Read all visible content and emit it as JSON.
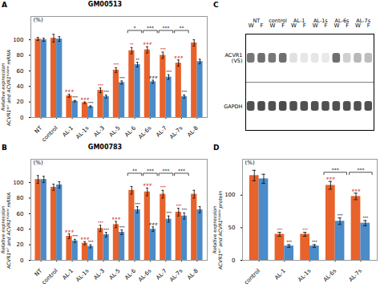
{
  "chart_data": [
    {
      "type": "bar",
      "panel_label": "A",
      "title": "GM00513",
      "ylabel": "Relative expression\nACVR1ᵂᵀ and ACVR1ᴿ²⁰⁶ᴴ mRNA",
      "categories": [
        "NT",
        "control",
        "AL-1",
        "AL-1s",
        "AL-3",
        "AL-5",
        "AL-6",
        "AL-6s",
        "AL-7",
        "AL-7s",
        "AL-8"
      ],
      "series": [
        {
          "color": "#E8622C",
          "values": [
            101,
            102,
            28,
            19,
            35,
            61,
            86,
            87,
            80,
            70,
            96
          ],
          "errors": [
            2,
            5,
            2,
            1,
            3,
            3,
            4,
            4,
            4,
            4,
            4
          ]
        },
        {
          "color": "#4B8BC8",
          "values": [
            100,
            101,
            21,
            14,
            27,
            45,
            68,
            46,
            52,
            27,
            72
          ],
          "errors": [
            2,
            3,
            1,
            1,
            2,
            2,
            3,
            2,
            3,
            2,
            3
          ]
        }
      ],
      "ylim": [
        0,
        130
      ],
      "yticks": [
        0,
        20,
        40,
        60,
        80,
        100
      ],
      "annotations": [
        {
          "text": "(%)"
        },
        {
          "text": "*",
          "category": "AL-6",
          "y": 112,
          "bracket": true
        },
        {
          "text": "***",
          "category": "AL-6s",
          "y": 112,
          "bracket": true
        },
        {
          "text": "***",
          "category": "AL-7",
          "y": 112,
          "bracket": true
        },
        {
          "text": "**",
          "category": "AL-7s",
          "y": 112,
          "bracket": true
        },
        {
          "text": "###",
          "category": "AL-1",
          "series": 0,
          "color": "#CC0000"
        },
        {
          "text": "###",
          "category": "AL-1s",
          "series": 0,
          "color": "#CC0000"
        },
        {
          "text": "***",
          "category": "AL-3",
          "series": 0,
          "color": "#CC0000"
        },
        {
          "text": "***",
          "category": "AL-5",
          "series": 0,
          "color": "#CC0000"
        },
        {
          "text": "**",
          "category": "AL-6",
          "series": 0,
          "color": "#CC0000"
        },
        {
          "text": "###",
          "category": "AL-6s",
          "series": 0,
          "color": "#CC0000"
        },
        {
          "text": "***",
          "category": "AL-7",
          "series": 0,
          "color": "#CC0000"
        },
        {
          "text": "###",
          "category": "AL-7s",
          "series": 0,
          "color": "#CC0000"
        },
        {
          "text": "***",
          "category": "AL-1",
          "series": 1,
          "color": "black"
        },
        {
          "text": "***",
          "category": "AL-1s",
          "series": 1,
          "color": "black"
        },
        {
          "text": "***",
          "category": "AL-3",
          "series": 1,
          "color": "black"
        },
        {
          "text": "***",
          "category": "AL-5",
          "series": 1,
          "color": "black"
        },
        {
          "text": "**",
          "category": "AL-6",
          "series": 1,
          "color": "black"
        },
        {
          "text": "###",
          "category": "AL-6s",
          "series": 1,
          "color": "black"
        },
        {
          "text": "***",
          "category": "AL-7",
          "series": 1,
          "color": "black"
        },
        {
          "text": "***",
          "category": "AL-7s",
          "series": 1,
          "color": "black"
        }
      ]
    },
    {
      "type": "bar",
      "panel_label": "B",
      "title": "GM00783",
      "ylabel": "Relative expression\nACVR1ᵂᵀ and ACVR1ᴿ²⁰⁶ᴴ mRNA",
      "categories": [
        "NT",
        "control",
        "AL-1",
        "AL-1s",
        "AL-3",
        "AL-5",
        "AL-6",
        "AL-6s",
        "AL-7",
        "AL-7s",
        "AL-8"
      ],
      "series": [
        {
          "color": "#E8622C",
          "values": [
            104,
            94,
            31,
            22,
            41,
            46,
            90,
            88,
            85,
            62,
            85
          ],
          "errors": [
            5,
            4,
            3,
            2,
            4,
            4,
            5,
            5,
            5,
            5,
            5
          ]
        },
        {
          "color": "#4B8BC8",
          "values": [
            104,
            97,
            25,
            18,
            33,
            36,
            65,
            40,
            53,
            57,
            65
          ],
          "errors": [
            4,
            4,
            2,
            2,
            3,
            3,
            4,
            3,
            4,
            4,
            4
          ]
        }
      ],
      "ylim": [
        0,
        130
      ],
      "yticks": [
        0,
        20,
        40,
        60,
        80,
        100
      ],
      "annotations": [
        {
          "text": "(%)"
        },
        {
          "text": "**",
          "category": "AL-6",
          "y": 112,
          "bracket": true
        },
        {
          "text": "***",
          "category": "AL-6s",
          "y": 112,
          "bracket": true
        },
        {
          "text": "***",
          "category": "AL-7",
          "y": 112,
          "bracket": true
        },
        {
          "text": "***",
          "category": "AL-7s",
          "y": 112,
          "bracket": true
        },
        {
          "text": "###",
          "category": "AL-1",
          "series": 0,
          "color": "#CC0000"
        },
        {
          "text": "###",
          "category": "AL-1s",
          "series": 0,
          "color": "#CC0000"
        },
        {
          "text": "***",
          "category": "AL-3",
          "series": 0,
          "color": "#CC0000"
        },
        {
          "text": "###",
          "category": "AL-5",
          "series": 0,
          "color": "#CC0000"
        },
        {
          "text": "###",
          "category": "AL-6s",
          "series": 0,
          "color": "#CC0000"
        },
        {
          "text": "***",
          "category": "AL-7",
          "series": 0,
          "color": "#CC0000"
        },
        {
          "text": "***",
          "category": "AL-7s",
          "series": 0,
          "color": "#CC0000"
        },
        {
          "text": "***",
          "category": "AL-1",
          "series": 1,
          "color": "black"
        },
        {
          "text": "***",
          "category": "AL-1s",
          "series": 1,
          "color": "black"
        },
        {
          "text": "***",
          "category": "AL-3",
          "series": 1,
          "color": "black"
        },
        {
          "text": "***",
          "category": "AL-5",
          "series": 1,
          "color": "black"
        },
        {
          "text": "***",
          "category": "AL-6",
          "series": 1,
          "color": "black"
        },
        {
          "text": "###",
          "category": "AL-6s",
          "series": 1,
          "color": "black"
        },
        {
          "text": "***",
          "category": "AL-7",
          "series": 1,
          "color": "black"
        },
        {
          "text": "***",
          "category": "AL-7s",
          "series": 1,
          "color": "black"
        }
      ]
    },
    {
      "type": "heatmap",
      "panel_label": "C",
      "categories": [
        "W",
        "F",
        "W",
        "F",
        "W",
        "F",
        "W",
        "F",
        "W",
        "F",
        "W",
        "F"
      ],
      "groups": [
        "NT",
        "control",
        "AL-1",
        "AL-1s",
        "AL-6s",
        "AL-7s"
      ],
      "series": [
        {
          "name": "ACVR1\n(V5)",
          "color": "#555555",
          "values": [
            0.8,
            0.85,
            0.8,
            0.85,
            0.18,
            0.14,
            0.15,
            0.13,
            0.85,
            0.28,
            0.42,
            0.38
          ]
        },
        {
          "name": "GAPDH",
          "color": "#333333",
          "values": [
            0.85,
            0.88,
            0.85,
            0.88,
            0.85,
            0.85,
            0.85,
            0.85,
            0.85,
            0.85,
            0.85,
            0.85
          ]
        }
      ]
    },
    {
      "type": "bar",
      "panel_label": "D",
      "ylabel": "Relative expression\nACVR1ᵂᵀ and ACVR1ᴿ²⁰⁶ᴴ protein",
      "categories": [
        "control",
        "AL-1",
        "AL-1s",
        "AL-6s",
        "AL-7s"
      ],
      "series": [
        {
          "color": "#E8622C",
          "values": [
            130,
            40,
            40,
            115,
            98
          ],
          "errors": [
            8,
            3,
            3,
            6,
            5
          ]
        },
        {
          "color": "#4B8BC8",
          "values": [
            125,
            22,
            22,
            60,
            57
          ],
          "errors": [
            7,
            2,
            2,
            5,
            4
          ]
        }
      ],
      "ylim": [
        0,
        155
      ],
      "yticks": [
        0,
        50,
        100
      ],
      "annotations": [
        {
          "text": "(%)"
        },
        {
          "text": "***",
          "category": "AL-6s",
          "y": 135,
          "bracket": true
        },
        {
          "text": "***",
          "category": "AL-7s",
          "y": 135,
          "bracket": true
        },
        {
          "text": "***",
          "category": "AL-1",
          "series": 0,
          "color": "#CC0000"
        },
        {
          "text": "***",
          "category": "AL-1s",
          "series": 0,
          "color": "#CC0000"
        },
        {
          "text": "###",
          "category": "AL-6s",
          "series": 0,
          "color": "#CC0000"
        },
        {
          "text": "###",
          "category": "AL-7s",
          "series": 0,
          "color": "#CC0000"
        },
        {
          "text": "***",
          "category": "AL-1",
          "series": 1,
          "color": "black"
        },
        {
          "text": "***",
          "category": "AL-1s",
          "series": 1,
          "color": "black"
        },
        {
          "text": "***",
          "category": "AL-6s",
          "series": 1,
          "color": "black"
        },
        {
          "text": "***",
          "category": "AL-7s",
          "series": 1,
          "color": "black"
        }
      ]
    }
  ]
}
